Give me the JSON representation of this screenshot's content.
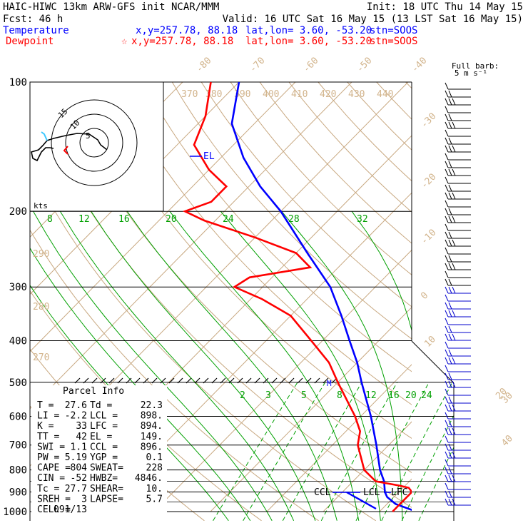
{
  "header": {
    "model_line": "HAIC-HIWC 13km ARW-GFS init   NCAR/MMM",
    "init_line": "Init: 18 UTC Thu 14 May 15",
    "fcst_line": "Fcst:   46 h",
    "valid_line": "Valid: 16 UTC Sat 16 May 15 (13 LST Sat 16 May 15)",
    "temperature": {
      "label": "Temperature",
      "xy": "x,y=257.78, 88.18",
      "latlon": "lat,lon=  3.60, -53.20",
      "stn": "stn=SOOS"
    },
    "dewpoint": {
      "label": "Dewpoint",
      "xy": "x,y=257.78, 88.18",
      "latlon": "lat,lon=  3.60, -53.20",
      "stn": "stn=SOOS"
    },
    "colors": {
      "temperature": "#0000ff",
      "dewpoint": "#ff0000"
    }
  },
  "barb_legend": {
    "line1": "Full barb:",
    "line2": "5 m s⁻¹"
  },
  "hodograph": {
    "units_label": "kts",
    "ring_labels": [
      "5",
      "10",
      "15"
    ]
  },
  "parcel_info": {
    "title": "Parcel Info",
    "rows": [
      [
        "T  =",
        "27.6",
        "Td =",
        "22.3"
      ],
      [
        "LI =",
        "-2.2",
        "LCL =",
        "898."
      ],
      [
        "K  =",
        "33",
        "LFC =",
        "894."
      ],
      [
        "TT =",
        "42",
        "EL  =",
        "149."
      ],
      [
        "SWI =",
        "1.1",
        "CCL =",
        "896."
      ],
      [
        "PW  =",
        "5.19",
        "YGP =",
        "0.1"
      ],
      [
        "CAPE =",
        "804",
        "SWEAT=",
        "228"
      ],
      [
        "CIN  =",
        "-52",
        "HWBZ=",
        "4846."
      ],
      [
        "Tc  =",
        "27.7",
        "SHEAR=",
        "10."
      ],
      [
        "SREH =",
        "3",
        "LAPSE=",
        "5.7"
      ],
      [
        "CELL =",
        "091/13",
        "",
        ""
      ]
    ]
  },
  "chart_data": {
    "type": "line",
    "title": "",
    "yaxis": {
      "scale": "log-pressure",
      "unit": "hPa",
      "range": [
        1000,
        100
      ],
      "tick_labels": [
        100,
        200,
        300,
        400,
        500,
        600,
        700,
        800,
        900,
        1000
      ]
    },
    "isotherm_labels": [
      "-80",
      "-70",
      "-60",
      "-50",
      "-40",
      "-30",
      "-20",
      "-10",
      "0",
      "10",
      "20",
      "30",
      "40"
    ],
    "theta_labels": [
      "370",
      "380",
      "390",
      "400",
      "410",
      "420",
      "430",
      "440"
    ],
    "left_theta_labels": [
      "290",
      "280",
      "270"
    ],
    "mixing_ratio_labels_upper": [
      "8",
      "12",
      "16",
      "20",
      "24",
      "28",
      "32"
    ],
    "mixing_ratio_labels_lower": [
      "2",
      "3",
      "5",
      "8",
      "12",
      "16",
      "20",
      "24"
    ],
    "level_markers": [
      {
        "label": "EL",
        "p": 149
      },
      {
        "label": "M",
        "p": 500
      },
      {
        "label": "CCL",
        "p": 896
      },
      {
        "label": "LCL",
        "p": 898
      },
      {
        "label": "LFC",
        "p": 894
      }
    ],
    "series": [
      {
        "name": "Temperature",
        "points": [
          [
            1000,
            26.5
          ],
          [
            960,
            21.5
          ],
          [
            925,
            18.8
          ],
          [
            900,
            17.5
          ],
          [
            850,
            15.5
          ],
          [
            800,
            12.8
          ],
          [
            700,
            7.8
          ],
          [
            600,
            1.8
          ],
          [
            500,
            -5.8
          ],
          [
            450,
            -10
          ],
          [
            400,
            -15.2
          ],
          [
            350,
            -21
          ],
          [
            300,
            -28
          ],
          [
            250,
            -38
          ],
          [
            200,
            -50
          ],
          [
            175,
            -58
          ],
          [
            150,
            -66
          ],
          [
            125,
            -74
          ],
          [
            100,
            -80
          ]
        ]
      },
      {
        "name": "Dewpoint",
        "points": [
          [
            1000,
            22.3
          ],
          [
            970,
            22.3
          ],
          [
            950,
            22.3
          ],
          [
            930,
            22.3
          ],
          [
            900,
            22.3
          ],
          [
            880,
            21.0
          ],
          [
            870,
            19.0
          ],
          [
            850,
            14.0
          ],
          [
            800,
            10.0
          ],
          [
            700,
            4.5
          ],
          [
            650,
            2.5
          ],
          [
            600,
            -1.0
          ],
          [
            500,
            -10.0
          ],
          [
            450,
            -15
          ],
          [
            400,
            -22
          ],
          [
            350,
            -30
          ],
          [
            320,
            -38
          ],
          [
            300,
            -45
          ],
          [
            285,
            -44
          ],
          [
            270,
            -35
          ],
          [
            250,
            -40
          ],
          [
            230,
            -50
          ],
          [
            210,
            -62
          ],
          [
            200,
            -67
          ],
          [
            190,
            -64
          ],
          [
            175,
            -64
          ],
          [
            160,
            -70
          ],
          [
            140,
            -77
          ],
          [
            120,
            -80
          ],
          [
            100,
            -85
          ]
        ]
      }
    ]
  }
}
